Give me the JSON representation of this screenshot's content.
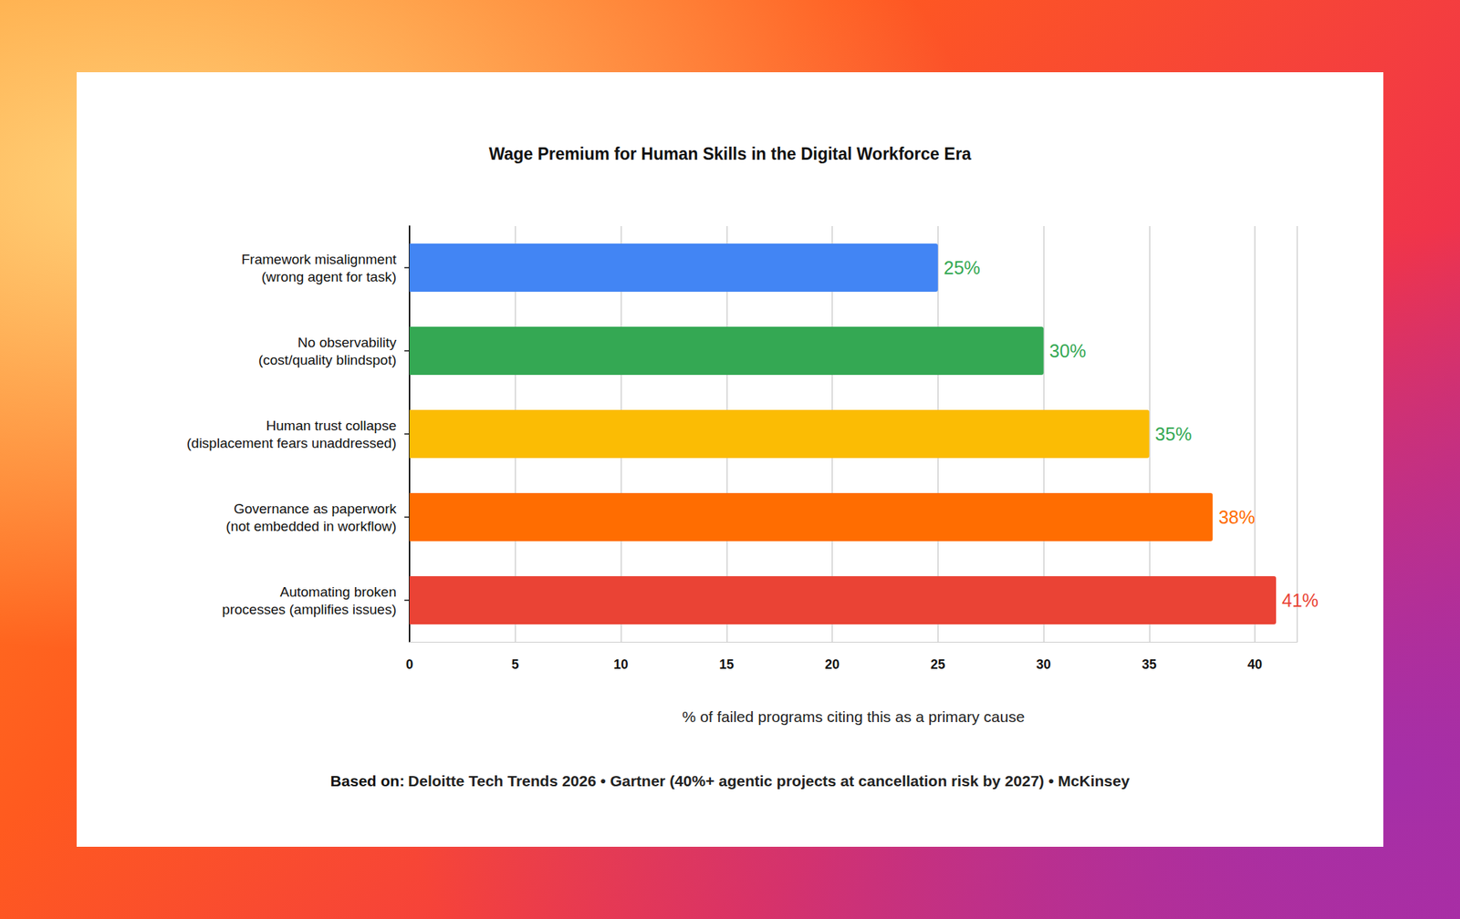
{
  "chart_data": {
    "type": "bar",
    "orientation": "horizontal",
    "title": "Wage Premium for Human Skills in the Digital Workforce Era",
    "categories": [
      "Framework misalignment\n(wrong agent for task)",
      "No observability\n(cost/quality blindspot)",
      "Human trust collapse\n(displacement fears unaddressed)",
      "Governance as paperwork\n(not embedded in workflow)",
      "Automating broken\nprocesses (amplifies issues)"
    ],
    "values": [
      25,
      30,
      35,
      38,
      41
    ],
    "value_labels": [
      "25%",
      "30%",
      "35%",
      "38%",
      "41%"
    ],
    "colors": [
      "#4285f4",
      "#34a853",
      "#fbbc04",
      "#ff6d01",
      "#ea4335"
    ],
    "xlabel": "% of failed programs citing this as a primary cause",
    "xlim": [
      0,
      42
    ],
    "xticks": [
      0,
      5,
      10,
      15,
      20,
      25,
      30,
      35,
      40
    ],
    "grid": true,
    "data_labels": true,
    "source": {
      "label": "Based on:",
      "text": "Deloitte Tech Trends 2026 • Gartner (40%+ agentic projects at cancellation risk by 2027) • McKinsey"
    }
  }
}
